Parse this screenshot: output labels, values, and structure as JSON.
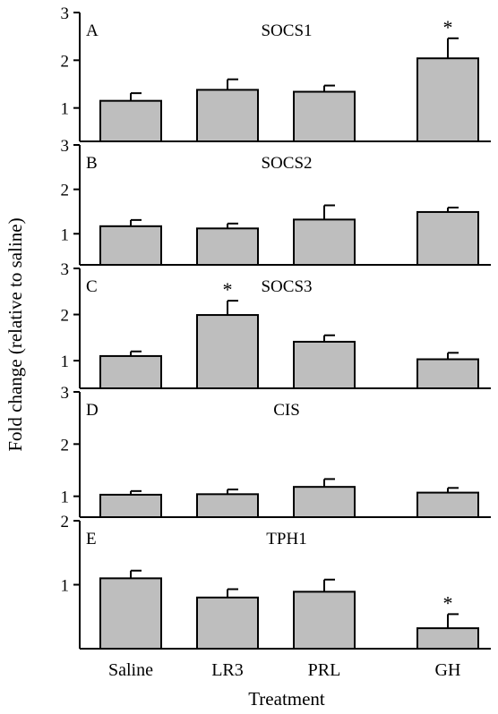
{
  "chart_data": {
    "type": "bar",
    "ylabel": "Fold change  (relative to saline)",
    "xlabel": "Treatment",
    "categories": [
      "Saline",
      "LR3",
      "PRL",
      "GH"
    ],
    "colors": {
      "bar_fill": "#bebebe",
      "bar_stroke": "#000000"
    },
    "panels": [
      {
        "letter": "A",
        "title": "SOCS1",
        "ylim": [
          0.3,
          3.0
        ],
        "yticks": [
          "1",
          "2",
          "3"
        ],
        "values": [
          1.15,
          1.38,
          1.34,
          2.04
        ],
        "errors": [
          0.16,
          0.22,
          0.13,
          0.42
        ],
        "significant": [
          "",
          "",
          "",
          "*"
        ]
      },
      {
        "letter": "B",
        "title": "SOCS2",
        "ylim": [
          0.3,
          3.0
        ],
        "yticks": [
          "1",
          "2",
          "3"
        ],
        "values": [
          1.17,
          1.12,
          1.32,
          1.49
        ],
        "errors": [
          0.14,
          0.11,
          0.32,
          0.1
        ],
        "significant": [
          "",
          "",
          "",
          ""
        ]
      },
      {
        "letter": "C",
        "title": "SOCS3",
        "ylim": [
          0.4,
          3.0
        ],
        "yticks": [
          "1",
          "2",
          "3"
        ],
        "values": [
          1.1,
          1.99,
          1.41,
          1.03
        ],
        "errors": [
          0.1,
          0.31,
          0.14,
          0.14
        ],
        "significant": [
          "",
          "*",
          "",
          ""
        ]
      },
      {
        "letter": "D",
        "title": "CIS",
        "ylim": [
          0.6,
          3.0
        ],
        "yticks": [
          "1",
          "2",
          "3"
        ],
        "values": [
          1.03,
          1.04,
          1.18,
          1.07
        ],
        "errors": [
          0.07,
          0.09,
          0.15,
          0.09
        ],
        "significant": [
          "",
          "",
          "",
          ""
        ]
      },
      {
        "letter": "E",
        "title": "TPH1",
        "ylim": [
          0.0,
          2.0
        ],
        "yticks": [
          "1",
          "2"
        ],
        "values": [
          1.1,
          0.8,
          0.89,
          0.32
        ],
        "errors": [
          0.12,
          0.13,
          0.19,
          0.22
        ],
        "significant": [
          "",
          "",
          "",
          "*"
        ]
      }
    ]
  }
}
